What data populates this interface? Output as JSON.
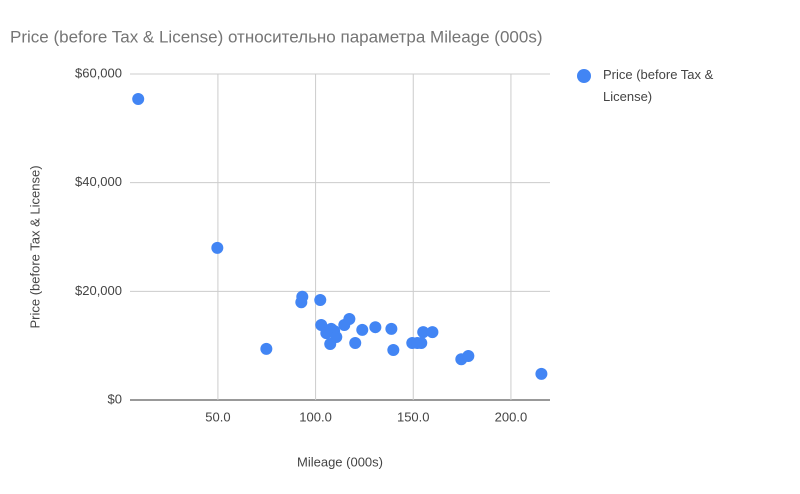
{
  "chart_data": {
    "type": "scatter",
    "title": "Price (before Tax & License) относительно параметра Mileage (000s)",
    "x_label": "Mileage (000s)",
    "y_label": "Price (before Tax & License)",
    "xlim": [
      5,
      220
    ],
    "ylim": [
      0,
      60000
    ],
    "xticks": [
      {
        "value": 50,
        "label": "50.0"
      },
      {
        "value": 100,
        "label": "100.0"
      },
      {
        "value": 150,
        "label": "150.0"
      },
      {
        "value": 200,
        "label": "200.0"
      }
    ],
    "yticks": [
      {
        "value": 0,
        "label": "$0"
      },
      {
        "value": 20000,
        "label": "$20,000"
      },
      {
        "value": 40000,
        "label": "$40,000"
      },
      {
        "value": 60000,
        "label": "$60,000"
      }
    ],
    "grid": true,
    "legend": "right",
    "series": [
      {
        "name": "Price (before Tax & License)",
        "color": "#4285f4",
        "x": [
          9.2,
          49.7,
          74.8,
          92.7,
          93.2,
          102.4,
          102.9,
          105.5,
          108,
          107.5,
          109.5,
          110.6,
          114.7,
          117.3,
          120.3,
          123.9,
          130.6,
          138.8,
          139.8,
          149.5,
          152.1,
          154.1,
          155.1,
          159.8,
          174.6,
          178.2,
          215.6
        ],
        "values": [
          55400,
          28000,
          9400,
          18000,
          19000,
          18400,
          13800,
          12300,
          13100,
          10300,
          12700,
          11600,
          13800,
          14900,
          10500,
          12900,
          13400,
          13100,
          9200,
          10500,
          10500,
          10500,
          12500,
          12500,
          7500,
          8100,
          4800
        ]
      }
    ]
  }
}
